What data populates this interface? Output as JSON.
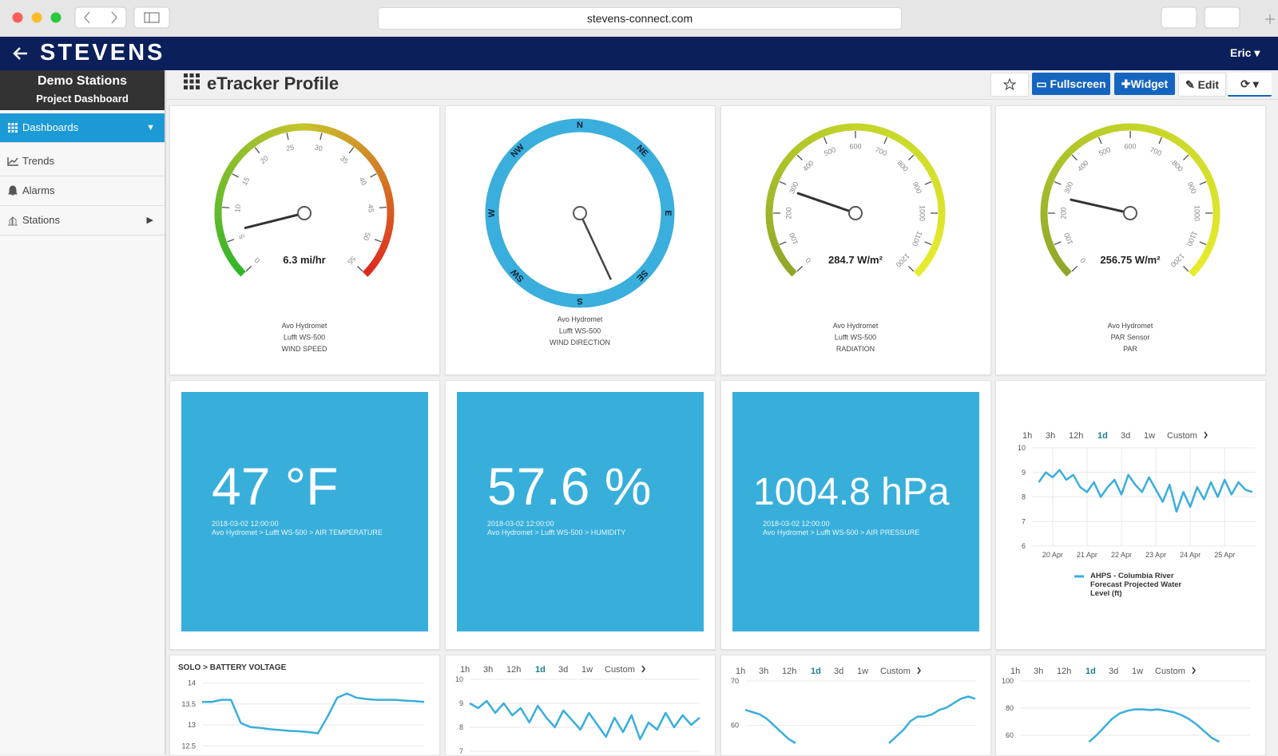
{
  "browser": {
    "url": "stevens-connect.com"
  },
  "app": {
    "logo": "STEVENS",
    "user": "Eric"
  },
  "sidebar": {
    "title": "Demo Stations",
    "subtitle": "Project Dashboard",
    "items": [
      "Dashboards",
      "Trends",
      "Alarms",
      "Stations"
    ]
  },
  "header": {
    "title": "eTracker Profile",
    "buttons": [
      "Fullscreen",
      "Widget",
      "Edit"
    ]
  },
  "range_options": [
    "1h",
    "3h",
    "12h",
    "1d",
    "3d",
    "1w",
    "Custom"
  ],
  "selected_range": "1d",
  "gauges": [
    {
      "type": "gauge",
      "value": 6.3,
      "value_label": "6.3 mi/hr",
      "ylim": [
        0,
        55
      ],
      "ticks": [
        0,
        5,
        10,
        15,
        20,
        25,
        30,
        35,
        40,
        45,
        50,
        55
      ],
      "colors": [
        "#2db52a",
        "#c8c42c",
        "#e0261e"
      ],
      "source": [
        "Avo Hydromet",
        "Lufft WS-500",
        "WIND SPEED"
      ]
    },
    {
      "type": "gauge",
      "value": 284.7,
      "value_label": "284.7 W/m²",
      "ylim": [
        0,
        1200
      ],
      "ticks": [
        0,
        100,
        200,
        300,
        400,
        500,
        600,
        700,
        800,
        900,
        1000,
        1100,
        1200
      ],
      "colors": [
        "#8da52a",
        "#c3d42a",
        "#e8ec2c"
      ],
      "source": [
        "Avo Hydromet",
        "Lufft WS-500",
        "RADIATION"
      ]
    },
    {
      "type": "gauge",
      "value": 256.75,
      "value_label": "256.75 W/m²",
      "ylim": [
        0,
        1200
      ],
      "ticks": [
        0,
        100,
        200,
        300,
        400,
        500,
        600,
        700,
        800,
        900,
        1000,
        1100,
        1200
      ],
      "colors": [
        "#8da52a",
        "#c3d42a",
        "#e8ec2c"
      ],
      "source": [
        "Avo Hydromet",
        "PAR Sensor",
        "PAR"
      ]
    }
  ],
  "compass": {
    "type": "compass",
    "value": 155,
    "labels": [
      "N",
      "NE",
      "E",
      "SE",
      "S",
      "SW",
      "W",
      "NW"
    ],
    "color": "#3aaedc",
    "source": [
      "Avo Hydromet",
      "Lufft WS-500",
      "WIND DIRECTION"
    ]
  },
  "tiles": [
    {
      "value": 47,
      "value_label": "47 °F",
      "timestamp": "2018-03-02 12:00:00",
      "source": "Avo Hydromet > Lufft WS-500 > AIR TEMPERATURE"
    },
    {
      "value": 57.6,
      "value_label": "57.6 %",
      "timestamp": "2018-03-02 12:00:00",
      "source": "Avo Hydromet > Lufft WS-500 > HUMIDITY"
    },
    {
      "value": 1004.8,
      "value_label": "1004.8 hPa",
      "timestamp": "2018-03-02 12:00:00",
      "source": "Avo Hydromet > Lufft WS-500 > AIR PRESSURE"
    }
  ],
  "charts": [
    {
      "type": "line",
      "x": [
        19.6,
        19.8,
        20.0,
        20.2,
        20.4,
        20.6,
        20.8,
        21.0,
        21.2,
        21.4,
        21.6,
        21.8,
        22.0,
        22.2,
        22.4,
        22.6,
        22.8,
        23.0,
        23.2,
        23.4,
        23.6,
        23.8,
        24.0,
        24.2,
        24.4,
        24.6,
        24.8,
        25.0,
        25.2,
        25.4,
        25.6,
        25.8
      ],
      "xlim": [
        19.4,
        25.9
      ],
      "xticks": [
        {
          "value": 20,
          "label": "20 Apr"
        },
        {
          "value": 21,
          "label": "21 Apr"
        },
        {
          "value": 22,
          "label": "22 Apr"
        },
        {
          "value": 23,
          "label": "23 Apr"
        },
        {
          "value": 24,
          "label": "24 Apr"
        },
        {
          "value": 25,
          "label": "25 Apr"
        }
      ],
      "ylim": [
        6,
        10
      ],
      "yticks": [
        6,
        7,
        8,
        9,
        10
      ],
      "series": [
        {
          "name": "AHPS - Columbia River Forecast Projected Water Level (ft)",
          "color": "#3aaedc",
          "values": [
            8.6,
            9.0,
            8.8,
            9.1,
            8.7,
            8.9,
            8.4,
            8.2,
            8.6,
            8.0,
            8.4,
            8.7,
            8.1,
            8.9,
            8.5,
            8.2,
            8.8,
            8.3,
            7.8,
            8.5,
            7.4,
            8.2,
            7.6,
            8.4,
            7.9,
            8.6,
            8.0,
            8.7,
            8.1,
            8.6,
            8.3,
            8.2
          ]
        }
      ]
    },
    {
      "type": "line",
      "title": "SOLO > BATTERY VOLTAGE",
      "color": "#3aaedc",
      "ylim": [
        12.45,
        14.05
      ],
      "yticks": [
        12.5,
        13,
        13.5,
        14
      ],
      "values": [
        13.55,
        13.55,
        13.6,
        13.6,
        13.05,
        12.95,
        12.93,
        12.9,
        12.88,
        12.86,
        12.85,
        12.83,
        12.8,
        13.2,
        13.65,
        13.75,
        13.65,
        13.62,
        13.6,
        13.6,
        13.6,
        13.58,
        13.57,
        13.55
      ]
    },
    {
      "type": "line",
      "color": "#3aaedc",
      "ylim": [
        7,
        10
      ],
      "yticks": [
        7,
        8,
        9,
        10
      ],
      "values": [
        9.0,
        8.8,
        9.1,
        8.6,
        9.0,
        8.5,
        8.8,
        8.2,
        8.9,
        8.4,
        8.0,
        8.7,
        8.3,
        7.9,
        8.6,
        8.1,
        7.6,
        8.4,
        7.8,
        8.5,
        7.5,
        8.2,
        7.9,
        8.6,
        8.0,
        8.5,
        8.1,
        8.4
      ]
    },
    {
      "type": "line",
      "color": "#3aaedc",
      "ylim": [
        56,
        70
      ],
      "yticks": [
        60,
        70
      ],
      "values": [
        63.5,
        63,
        62.5,
        61.5,
        60,
        58.5,
        57,
        56,
        null,
        null,
        null,
        null,
        null,
        null,
        null,
        null,
        null,
        null,
        null,
        null,
        56,
        57.5,
        59,
        61,
        62,
        62,
        62.5,
        63.5,
        64,
        65,
        66,
        66.5,
        66
      ]
    },
    {
      "type": "line",
      "color": "#3aaedc",
      "ylim": [
        54,
        100
      ],
      "yticks": [
        60,
        80,
        100
      ],
      "values": [
        null,
        null,
        null,
        null,
        null,
        null,
        null,
        null,
        null,
        55,
        60,
        66,
        72,
        76,
        78,
        79,
        79,
        78.5,
        79,
        78,
        77,
        75,
        72,
        68,
        63,
        58,
        55,
        null,
        null,
        null,
        null
      ]
    }
  ]
}
